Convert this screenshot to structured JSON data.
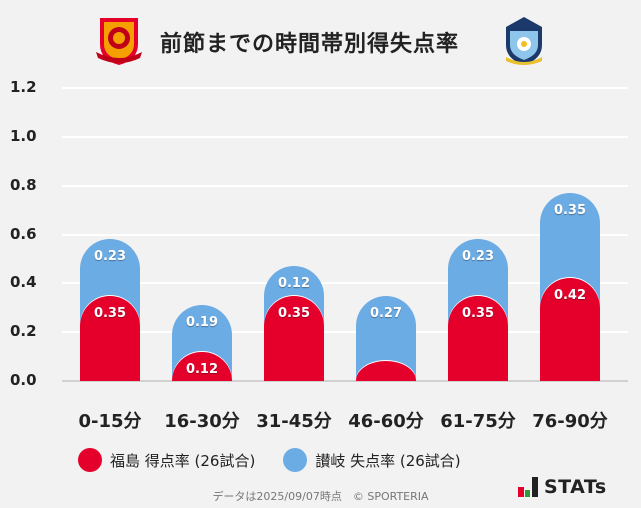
{
  "header": {
    "title": "前節までの時間帯別得失点率",
    "left_logo": "fukushima-united-fc-crest",
    "right_logo": "kamatamare-sanuki-crest"
  },
  "colors": {
    "fukushima": "#e4002b",
    "sanuki": "#6cace4",
    "background": "#f2f2f2"
  },
  "legend": {
    "items": [
      {
        "label": "福島 得点率 (26試合)",
        "color": "#e4002b"
      },
      {
        "label": "讃岐 失点率 (26試合)",
        "color": "#6cace4"
      }
    ]
  },
  "footer": {
    "note": "データは2025/09/07時点　© SPORTERIA",
    "brand": "STATs"
  },
  "chart_data": {
    "type": "bar",
    "stacked": true,
    "title": "前節までの時間帯別得失点率",
    "categories": [
      "0-15分",
      "16-30分",
      "31-45分",
      "46-60分",
      "61-75分",
      "76-90分"
    ],
    "series": [
      {
        "name": "福島 得点率 (26試合)",
        "color": "#e4002b",
        "values": [
          0.35,
          0.12,
          0.35,
          0.08,
          0.35,
          0.42
        ],
        "labels": [
          "0.35",
          "0.12",
          "0.35",
          "",
          "0.35",
          "0.42"
        ]
      },
      {
        "name": "讃岐 失点率 (26試合)",
        "color": "#6cace4",
        "values": [
          0.23,
          0.19,
          0.12,
          0.27,
          0.23,
          0.35
        ],
        "labels": [
          "0.23",
          "0.19",
          "0.12",
          "0.27",
          "0.23",
          "0.35"
        ]
      }
    ],
    "yticks": [
      "0.0",
      "0.2",
      "0.4",
      "0.6",
      "0.8",
      "1.0",
      "1.2"
    ],
    "ylim": [
      0,
      1.2
    ],
    "xlabel": "",
    "ylabel": "",
    "grid": true,
    "legend_position": "bottom"
  }
}
